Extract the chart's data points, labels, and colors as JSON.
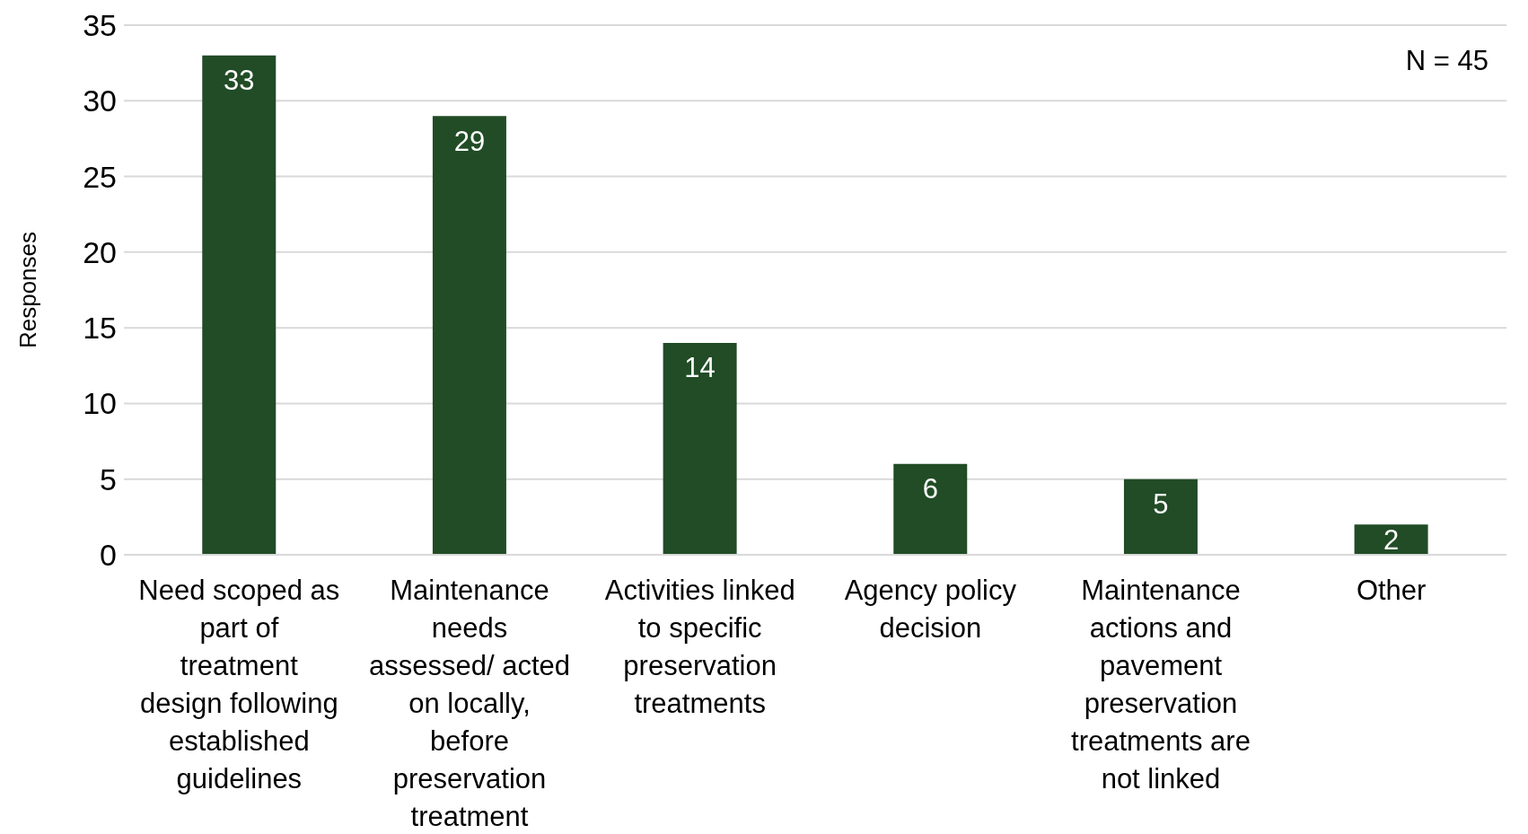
{
  "chart_data": {
    "type": "bar",
    "categories": [
      "Need scoped as part of treatment design following established guidelines",
      "Maintenance needs assessed/ acted on locally, before preservation treatment",
      "Activities linked to specific preservation treatments",
      "Agency policy decision",
      "Maintenance actions and pavement preservation treatments are not linked",
      "Other"
    ],
    "values": [
      33,
      29,
      14,
      6,
      5,
      2
    ],
    "color": "#214c26",
    "ylabel": "Responses",
    "ylim": [
      0,
      35
    ],
    "yticks": [
      0,
      5,
      10,
      15,
      20,
      25,
      30,
      35
    ],
    "grid": "y",
    "data_labels": true,
    "annotations": [
      "N = 45"
    ]
  }
}
